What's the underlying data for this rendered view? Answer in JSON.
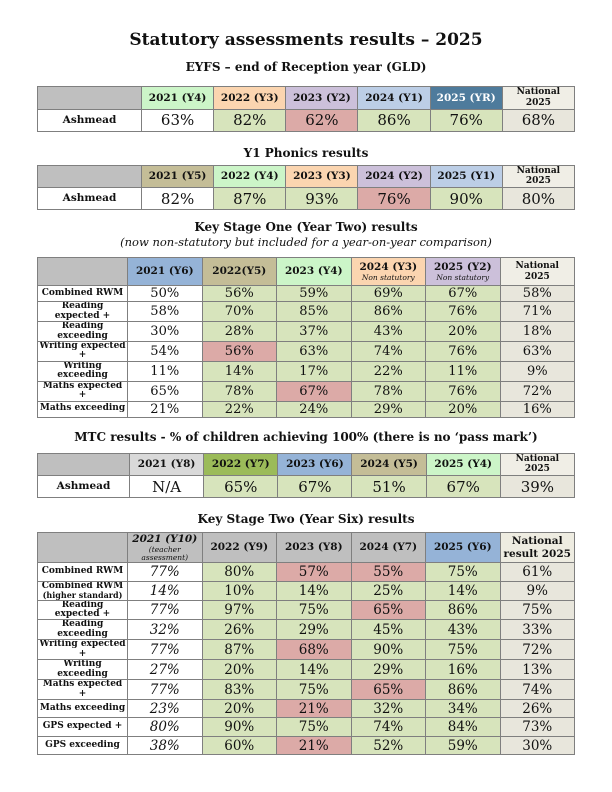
{
  "page_title": "Statutory assessments results – 2025",
  "colors": {
    "gray": "#bfbfbf",
    "lightgray": "#d9d9d9",
    "mint": "#ccf5c8",
    "peach": "#fbd5b0",
    "lavender": "#ccc0da",
    "paleblue": "#bccee6",
    "blue": "#95b3d7",
    "steelblue": "#4e7b9c",
    "khaki": "#c4bd97",
    "green": "#9bbb59",
    "olive": "#d7e4bc",
    "pink": "#dcaaa7",
    "beige": "#e8e6dc",
    "offwhite": "#f0eee6",
    "natbeige": "#eeece1",
    "white": "#ffffff"
  },
  "sections": [
    {
      "id": "eyfs",
      "heading": "EYFS – end of Reception year (GLD)",
      "table": {
        "header": [
          {
            "label": "",
            "bg": "gray"
          },
          {
            "label": "2021 (Y4)",
            "bg": "mint"
          },
          {
            "label": "2022 (Y3)",
            "bg": "peach"
          },
          {
            "label": "2023 (Y2)",
            "bg": "lavender"
          },
          {
            "label": "2024 (Y1)",
            "bg": "paleblue"
          },
          {
            "label": "2025 (YR)",
            "bg": "steelblue",
            "fg": "#ffffff"
          },
          {
            "label": "National 2025",
            "bg": "offwhite"
          }
        ],
        "rows": [
          {
            "label": "Ashmead",
            "cells": [
              {
                "v": "63%",
                "bg": "white"
              },
              {
                "v": "82%",
                "bg": "olive"
              },
              {
                "v": "62%",
                "bg": "pink"
              },
              {
                "v": "86%",
                "bg": "olive"
              },
              {
                "v": "76%",
                "bg": "olive"
              },
              {
                "v": "68%",
                "bg": "beige"
              }
            ]
          }
        ]
      }
    },
    {
      "id": "phonics",
      "heading": "Y1 Phonics results",
      "table": {
        "header": [
          {
            "label": "",
            "bg": "gray"
          },
          {
            "label": "2021 (Y5)",
            "bg": "khaki"
          },
          {
            "label": "2022 (Y4)",
            "bg": "mint"
          },
          {
            "label": "2023 (Y3)",
            "bg": "peach"
          },
          {
            "label": "2024 (Y2)",
            "bg": "lavender"
          },
          {
            "label": "2025 (Y1)",
            "bg": "paleblue"
          },
          {
            "label": "National 2025",
            "bg": "offwhite"
          }
        ],
        "rows": [
          {
            "label": "Ashmead",
            "cells": [
              {
                "v": "82%",
                "bg": "white"
              },
              {
                "v": "87%",
                "bg": "olive"
              },
              {
                "v": "93%",
                "bg": "olive"
              },
              {
                "v": "76%",
                "bg": "pink"
              },
              {
                "v": "90%",
                "bg": "olive"
              },
              {
                "v": "80%",
                "bg": "beige"
              }
            ]
          }
        ]
      }
    },
    {
      "id": "ks1",
      "heading": "Key Stage One (Year Two) results",
      "subheading": "(now non-statutory but included for a year-on-year comparison)",
      "table": {
        "header": [
          {
            "label": "",
            "bg": "gray"
          },
          {
            "label": "2021 (Y6)",
            "bg": "blue"
          },
          {
            "label": "2022(Y5)",
            "bg": "khaki"
          },
          {
            "label": "2023 (Y4)",
            "bg": "mint"
          },
          {
            "label": "2024 (Y3)",
            "note": "Non statutory",
            "bg": "peach"
          },
          {
            "label": "2025 (Y2)",
            "note": "Non statutory",
            "bg": "lavender"
          },
          {
            "label": "National 2025",
            "bg": "offwhite"
          }
        ],
        "rows": [
          {
            "label": "Combined RWM",
            "cells": [
              {
                "v": "50%",
                "bg": "white"
              },
              {
                "v": "56%",
                "bg": "olive"
              },
              {
                "v": "59%",
                "bg": "olive"
              },
              {
                "v": "69%",
                "bg": "olive"
              },
              {
                "v": "67%",
                "bg": "olive"
              },
              {
                "v": "58%",
                "bg": "beige"
              }
            ]
          },
          {
            "label": "Reading expected +",
            "cells": [
              {
                "v": "58%",
                "bg": "white"
              },
              {
                "v": "70%",
                "bg": "olive"
              },
              {
                "v": "85%",
                "bg": "olive"
              },
              {
                "v": "86%",
                "bg": "olive"
              },
              {
                "v": "76%",
                "bg": "olive"
              },
              {
                "v": "71%",
                "bg": "beige"
              }
            ]
          },
          {
            "label": "Reading exceeding",
            "cells": [
              {
                "v": "30%",
                "bg": "white"
              },
              {
                "v": "28%",
                "bg": "olive"
              },
              {
                "v": "37%",
                "bg": "olive"
              },
              {
                "v": "43%",
                "bg": "olive"
              },
              {
                "v": "20%",
                "bg": "olive"
              },
              {
                "v": "18%",
                "bg": "beige"
              }
            ]
          },
          {
            "label": "Writing expected +",
            "cells": [
              {
                "v": "54%",
                "bg": "white"
              },
              {
                "v": "56%",
                "bg": "pink"
              },
              {
                "v": "63%",
                "bg": "olive"
              },
              {
                "v": "74%",
                "bg": "olive"
              },
              {
                "v": "76%",
                "bg": "olive"
              },
              {
                "v": "63%",
                "bg": "beige"
              }
            ]
          },
          {
            "label": "Writing exceeding",
            "cells": [
              {
                "v": "11%",
                "bg": "white"
              },
              {
                "v": "14%",
                "bg": "olive"
              },
              {
                "v": "17%",
                "bg": "olive"
              },
              {
                "v": "22%",
                "bg": "olive"
              },
              {
                "v": "11%",
                "bg": "olive"
              },
              {
                "v": "9%",
                "bg": "beige"
              }
            ]
          },
          {
            "label": "Maths expected +",
            "cells": [
              {
                "v": "65%",
                "bg": "white"
              },
              {
                "v": "78%",
                "bg": "olive"
              },
              {
                "v": "67%",
                "bg": "pink"
              },
              {
                "v": "78%",
                "bg": "olive"
              },
              {
                "v": "76%",
                "bg": "olive"
              },
              {
                "v": "72%",
                "bg": "beige"
              }
            ]
          },
          {
            "label": "Maths exceeding",
            "cells": [
              {
                "v": "21%",
                "bg": "white"
              },
              {
                "v": "22%",
                "bg": "olive"
              },
              {
                "v": "24%",
                "bg": "olive"
              },
              {
                "v": "29%",
                "bg": "olive"
              },
              {
                "v": "20%",
                "bg": "olive"
              },
              {
                "v": "16%",
                "bg": "beige"
              }
            ]
          }
        ]
      }
    },
    {
      "id": "mtc",
      "heading": "MTC results - % of children achieving 100% (there is no ‘pass mark’)",
      "table": {
        "header": [
          {
            "label": "",
            "bg": "gray"
          },
          {
            "label": "2021 (Y8)",
            "bg": "lightgray"
          },
          {
            "label": "2022 (Y7)",
            "bg": "green"
          },
          {
            "label": "2023 (Y6)",
            "bg": "blue"
          },
          {
            "label": "2024 (Y5)",
            "bg": "khaki"
          },
          {
            "label": "2025 (Y4)",
            "bg": "mint"
          },
          {
            "label": "National 2025",
            "bg": "offwhite"
          }
        ],
        "rows": [
          {
            "label": "Ashmead",
            "cells": [
              {
                "v": "N/A",
                "bg": "white"
              },
              {
                "v": "65%",
                "bg": "olive"
              },
              {
                "v": "67%",
                "bg": "olive"
              },
              {
                "v": "51%",
                "bg": "olive"
              },
              {
                "v": "67%",
                "bg": "olive"
              },
              {
                "v": "39%",
                "bg": "beige"
              }
            ]
          }
        ]
      }
    },
    {
      "id": "ks2",
      "heading": "Key Stage Two (Year Six) results",
      "table": {
        "header": [
          {
            "label": "",
            "bg": "gray"
          },
          {
            "label": "2021 (Y10)",
            "note": "(teacher assessment)",
            "italic": true,
            "bg": "gray"
          },
          {
            "label": "2022 (Y9)",
            "bg": "gray"
          },
          {
            "label": "2023 (Y8)",
            "bg": "gray"
          },
          {
            "label": "2024 (Y7)",
            "bg": "gray"
          },
          {
            "label": "2025 (Y6)",
            "bg": "blue"
          },
          {
            "label": "National result 2025",
            "bg": "natbeige"
          }
        ],
        "rows": [
          {
            "label": "Combined RWM",
            "cells": [
              {
                "v": "77%",
                "bg": "white",
                "italic": true
              },
              {
                "v": "80%",
                "bg": "olive"
              },
              {
                "v": "57%",
                "bg": "pink"
              },
              {
                "v": "55%",
                "bg": "pink"
              },
              {
                "v": "75%",
                "bg": "olive"
              },
              {
                "v": "61%",
                "bg": "beige"
              }
            ]
          },
          {
            "label": "Combined RWM",
            "sublabel": "(higher standard)",
            "cells": [
              {
                "v": "14%",
                "bg": "white",
                "italic": true
              },
              {
                "v": "10%",
                "bg": "olive"
              },
              {
                "v": "14%",
                "bg": "olive"
              },
              {
                "v": "25%",
                "bg": "olive"
              },
              {
                "v": "14%",
                "bg": "olive"
              },
              {
                "v": "9%",
                "bg": "beige"
              }
            ]
          },
          {
            "label": "Reading expected +",
            "cells": [
              {
                "v": "77%",
                "bg": "white",
                "italic": true
              },
              {
                "v": "97%",
                "bg": "olive"
              },
              {
                "v": "75%",
                "bg": "olive"
              },
              {
                "v": "65%",
                "bg": "pink"
              },
              {
                "v": "86%",
                "bg": "olive"
              },
              {
                "v": "75%",
                "bg": "beige"
              }
            ]
          },
          {
            "label": "Reading exceeding",
            "cells": [
              {
                "v": "32%",
                "bg": "white",
                "italic": true
              },
              {
                "v": "26%",
                "bg": "olive"
              },
              {
                "v": "29%",
                "bg": "olive"
              },
              {
                "v": "45%",
                "bg": "olive"
              },
              {
                "v": "43%",
                "bg": "olive"
              },
              {
                "v": "33%",
                "bg": "beige"
              }
            ]
          },
          {
            "label": "Writing expected +",
            "cells": [
              {
                "v": "77%",
                "bg": "white",
                "italic": true
              },
              {
                "v": "87%",
                "bg": "olive"
              },
              {
                "v": "68%",
                "bg": "pink"
              },
              {
                "v": "90%",
                "bg": "olive"
              },
              {
                "v": "75%",
                "bg": "olive"
              },
              {
                "v": "72%",
                "bg": "beige"
              }
            ]
          },
          {
            "label": "Writing exceeding",
            "cells": [
              {
                "v": "27%",
                "bg": "white",
                "italic": true
              },
              {
                "v": "20%",
                "bg": "olive"
              },
              {
                "v": "14%",
                "bg": "olive"
              },
              {
                "v": "29%",
                "bg": "olive"
              },
              {
                "v": "16%",
                "bg": "olive"
              },
              {
                "v": "13%",
                "bg": "beige"
              }
            ]
          },
          {
            "label": "Maths expected +",
            "cells": [
              {
                "v": "77%",
                "bg": "white",
                "italic": true
              },
              {
                "v": "83%",
                "bg": "olive"
              },
              {
                "v": "75%",
                "bg": "olive"
              },
              {
                "v": "65%",
                "bg": "pink"
              },
              {
                "v": "86%",
                "bg": "olive"
              },
              {
                "v": "74%",
                "bg": "beige"
              }
            ]
          },
          {
            "label": "Maths exceeding",
            "cells": [
              {
                "v": "23%",
                "bg": "white",
                "italic": true
              },
              {
                "v": "20%",
                "bg": "olive"
              },
              {
                "v": "21%",
                "bg": "pink"
              },
              {
                "v": "32%",
                "bg": "olive"
              },
              {
                "v": "34%",
                "bg": "olive"
              },
              {
                "v": "26%",
                "bg": "beige"
              }
            ]
          },
          {
            "label": "GPS expected +",
            "cells": [
              {
                "v": "80%",
                "bg": "white",
                "italic": true
              },
              {
                "v": "90%",
                "bg": "olive"
              },
              {
                "v": "75%",
                "bg": "olive"
              },
              {
                "v": "74%",
                "bg": "olive"
              },
              {
                "v": "84%",
                "bg": "olive"
              },
              {
                "v": "73%",
                "bg": "beige"
              }
            ]
          },
          {
            "label": "GPS exceeding",
            "cells": [
              {
                "v": "38%",
                "bg": "white",
                "italic": true
              },
              {
                "v": "60%",
                "bg": "olive"
              },
              {
                "v": "21%",
                "bg": "pink"
              },
              {
                "v": "52%",
                "bg": "olive"
              },
              {
                "v": "59%",
                "bg": "olive"
              },
              {
                "v": "30%",
                "bg": "beige"
              }
            ]
          }
        ]
      }
    }
  ]
}
